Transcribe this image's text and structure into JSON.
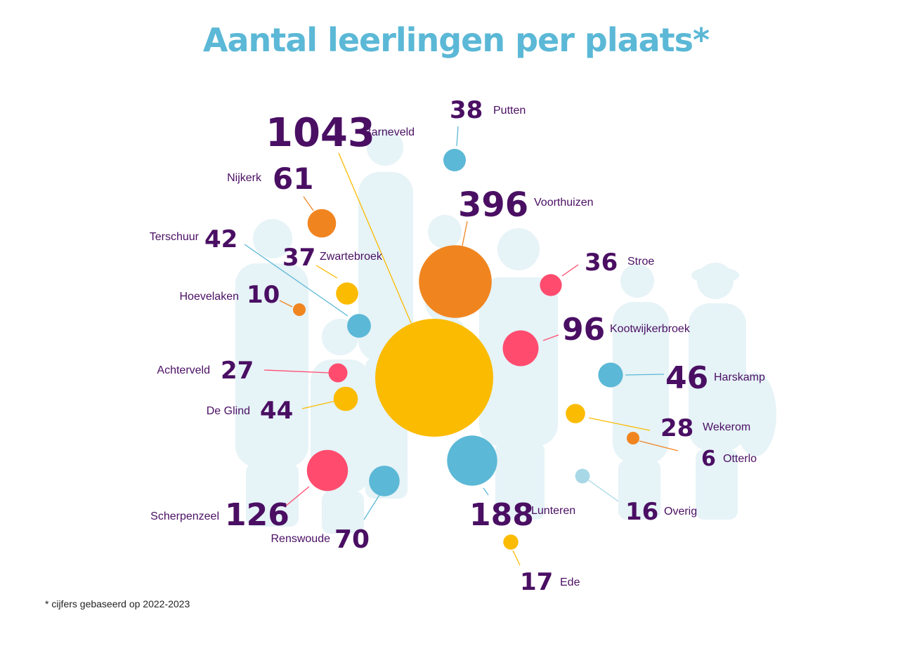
{
  "title": "Aantal leerlingen per plaats*",
  "footnote": "* cijfers gebaseerd op 2022-2023",
  "colors": {
    "title": "#5bb8d6",
    "text": "#4a0f63",
    "yellow": "#fbbb00",
    "orange": "#f08520",
    "pink": "#ff4c6e",
    "blue": "#5bb8d6",
    "lightblue": "#a8d8e6",
    "silhouette": "#e6f3f7"
  },
  "chart_data": {
    "type": "bubble",
    "title": "Aantal leerlingen per plaats*",
    "unit": "leerlingen",
    "categories": [
      "Barneveld",
      "Voorthuizen",
      "Lunteren",
      "Scherpenzeel",
      "Kootwijkerbroek",
      "Renswoude",
      "Nijkerk",
      "Harskamp",
      "De Glind",
      "Terschuur",
      "Putten",
      "Zwartebroek",
      "Stroe",
      "Wekerom",
      "Achterveld",
      "Ede",
      "Overig",
      "Hoevelaken",
      "Otterlo"
    ],
    "values": [
      1043,
      396,
      188,
      126,
      96,
      70,
      61,
      46,
      44,
      42,
      38,
      37,
      36,
      28,
      27,
      17,
      16,
      10,
      6
    ],
    "bubble_colors": [
      "yellow",
      "orange",
      "blue",
      "pink",
      "pink",
      "blue",
      "orange",
      "blue",
      "yellow",
      "blue",
      "blue",
      "yellow",
      "pink",
      "yellow",
      "pink",
      "yellow",
      "lightblue",
      "orange",
      "orange"
    ]
  }
}
